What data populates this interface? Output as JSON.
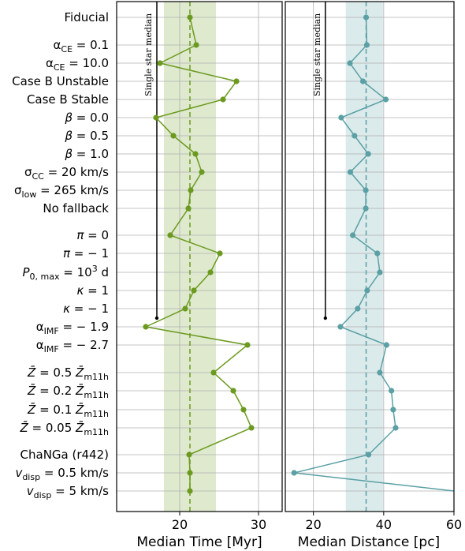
{
  "chart_data": [
    {
      "type": "scatter",
      "panel": "left",
      "xlabel": "Median Time [Myr]",
      "xlim": [
        12,
        33
      ],
      "xticks": [
        20,
        30
      ],
      "grid": true,
      "color": "#6b9a1f",
      "band": [
        18.0,
        24.6
      ],
      "vline_dashed": 21.3,
      "single_star_median": 17.1,
      "single_star_label": "Single star median",
      "points": [
        {
          "row": 0,
          "x": 21.3
        },
        {
          "row": 1,
          "x": 22.1
        },
        {
          "row": 2,
          "x": 17.5
        },
        {
          "row": 3,
          "x": 27.2
        },
        {
          "row": 4,
          "x": 25.5
        },
        {
          "row": 5,
          "x": 17.0
        },
        {
          "row": 6,
          "x": 19.2
        },
        {
          "row": 7,
          "x": 22.0
        },
        {
          "row": 8,
          "x": 22.8
        },
        {
          "row": 9,
          "x": 21.4
        },
        {
          "row": 10,
          "x": 21.1
        },
        {
          "row": 11,
          "x": 18.8
        },
        {
          "row": 12,
          "x": 25.1
        },
        {
          "row": 13,
          "x": 23.9
        },
        {
          "row": 14,
          "x": 21.8
        },
        {
          "row": 15,
          "x": 20.7
        },
        {
          "row": 16,
          "x": 15.7
        },
        {
          "row": 17,
          "x": 28.6
        },
        {
          "row": 18,
          "x": 24.3
        },
        {
          "row": 19,
          "x": 26.8
        },
        {
          "row": 20,
          "x": 28.1
        },
        {
          "row": 21,
          "x": 29.1
        },
        {
          "row": 22,
          "x": 21.2
        },
        {
          "row": 23,
          "x": 21.3
        },
        {
          "row": 24,
          "x": 21.3
        }
      ]
    },
    {
      "type": "scatter",
      "panel": "right",
      "xlabel": "Median Distance [pc]",
      "xlim": [
        12,
        60
      ],
      "xticks": [
        20,
        40,
        60
      ],
      "grid": true,
      "color": "#5aa0a4",
      "band": [
        29.2,
        39.8
      ],
      "vline_dashed": 35.0,
      "single_star_median": 23.4,
      "single_star_label": "Single star median",
      "points": [
        {
          "row": 0,
          "x": 35.0
        },
        {
          "row": 1,
          "x": 35.2
        },
        {
          "row": 2,
          "x": 30.4
        },
        {
          "row": 3,
          "x": 34.1
        },
        {
          "row": 4,
          "x": 40.6
        },
        {
          "row": 5,
          "x": 27.9
        },
        {
          "row": 6,
          "x": 31.7
        },
        {
          "row": 7,
          "x": 35.6
        },
        {
          "row": 8,
          "x": 30.5
        },
        {
          "row": 9,
          "x": 34.9
        },
        {
          "row": 10,
          "x": 34.9
        },
        {
          "row": 11,
          "x": 31.2
        },
        {
          "row": 12,
          "x": 38.2
        },
        {
          "row": 13,
          "x": 38.9
        },
        {
          "row": 14,
          "x": 35.3
        },
        {
          "row": 15,
          "x": 32.6
        },
        {
          "row": 16,
          "x": 27.7
        },
        {
          "row": 17,
          "x": 40.8
        },
        {
          "row": 18,
          "x": 38.9
        },
        {
          "row": 19,
          "x": 42.2
        },
        {
          "row": 20,
          "x": 42.7
        },
        {
          "row": 21,
          "x": 43.4
        },
        {
          "row": 22,
          "x": 35.7
        },
        {
          "row": 23,
          "x": 14.5
        },
        {
          "row": 24,
          "x": 60.0
        }
      ]
    }
  ],
  "row_labels": [
    {
      "html": "Fiducial"
    },
    {
      "html": "α<tspan dy=\"4\" font-size=\"11\">CE</tspan><tspan dy=\"-4\"> = 0.1</tspan>"
    },
    {
      "html": "α<tspan dy=\"4\" font-size=\"11\">CE</tspan><tspan dy=\"-4\"> = 10.0</tspan>"
    },
    {
      "html": "Case B Unstable"
    },
    {
      "html": "Case B Stable"
    },
    {
      "html": "<tspan font-style=\"italic\">β</tspan> = 0.0"
    },
    {
      "html": "<tspan font-style=\"italic\">β</tspan> = 0.5"
    },
    {
      "html": "<tspan font-style=\"italic\">β</tspan> = 1.0"
    },
    {
      "html": "σ<tspan dy=\"4\" font-size=\"11\">CC</tspan><tspan dy=\"-4\"> =  20 km/s</tspan>"
    },
    {
      "html": "σ<tspan dy=\"4\" font-size=\"11\">low</tspan><tspan dy=\"-4\"> =  265 km/s</tspan>"
    },
    {
      "html": "No fallback"
    },
    {
      "html": "<tspan font-style=\"italic\">π</tspan> = 0"
    },
    {
      "html": "<tspan font-style=\"italic\">π</tspan> =  − 1"
    },
    {
      "html": "<tspan font-style=\"italic\">P</tspan><tspan dy=\"4\" font-size=\"11\">0, max</tspan><tspan dy=\"-4\"> = 10</tspan><tspan dy=\"-6\" font-size=\"11\">3</tspan><tspan dy=\"6\"> d</tspan>"
    },
    {
      "html": "<tspan font-style=\"italic\">κ</tspan> = 1"
    },
    {
      "html": "<tspan font-style=\"italic\">κ</tspan> =  − 1"
    },
    {
      "html": "α<tspan dy=\"4\" font-size=\"11\">IMF</tspan><tspan dy=\"-4\"> =  − 1.9</tspan>"
    },
    {
      "html": "α<tspan dy=\"4\" font-size=\"11\">IMF</tspan><tspan dy=\"-4\"> =  − 2.7</tspan>"
    },
    {
      "html": "<tspan font-style=\"italic\">Z̄</tspan> = 0.5 <tspan font-style=\"italic\">Z̄</tspan><tspan dy=\"4\" font-size=\"11\">m11h</tspan>"
    },
    {
      "html": "<tspan font-style=\"italic\">Z̄</tspan> = 0.2 <tspan font-style=\"italic\">Z̄</tspan><tspan dy=\"4\" font-size=\"11\">m11h</tspan>"
    },
    {
      "html": "<tspan font-style=\"italic\">Z̄</tspan> = 0.1 <tspan font-style=\"italic\">Z̄</tspan><tspan dy=\"4\" font-size=\"11\">m11h</tspan>"
    },
    {
      "html": "<tspan font-style=\"italic\">Z̄</tspan> = 0.05 <tspan font-style=\"italic\">Z̄</tspan><tspan dy=\"4\" font-size=\"11\">m11h</tspan>"
    },
    {
      "html": "ChaNGa (r442)"
    },
    {
      "html": "<tspan font-style=\"italic\">v</tspan><tspan dy=\"4\" font-size=\"11\">disp</tspan><tspan dy=\"-4\"> = 0.5 km/s</tspan>"
    },
    {
      "html": "<tspan font-style=\"italic\">v</tspan><tspan dy=\"4\" font-size=\"11\">disp</tspan><tspan dy=\"-4\"> = 5 km/s</tspan>"
    }
  ]
}
